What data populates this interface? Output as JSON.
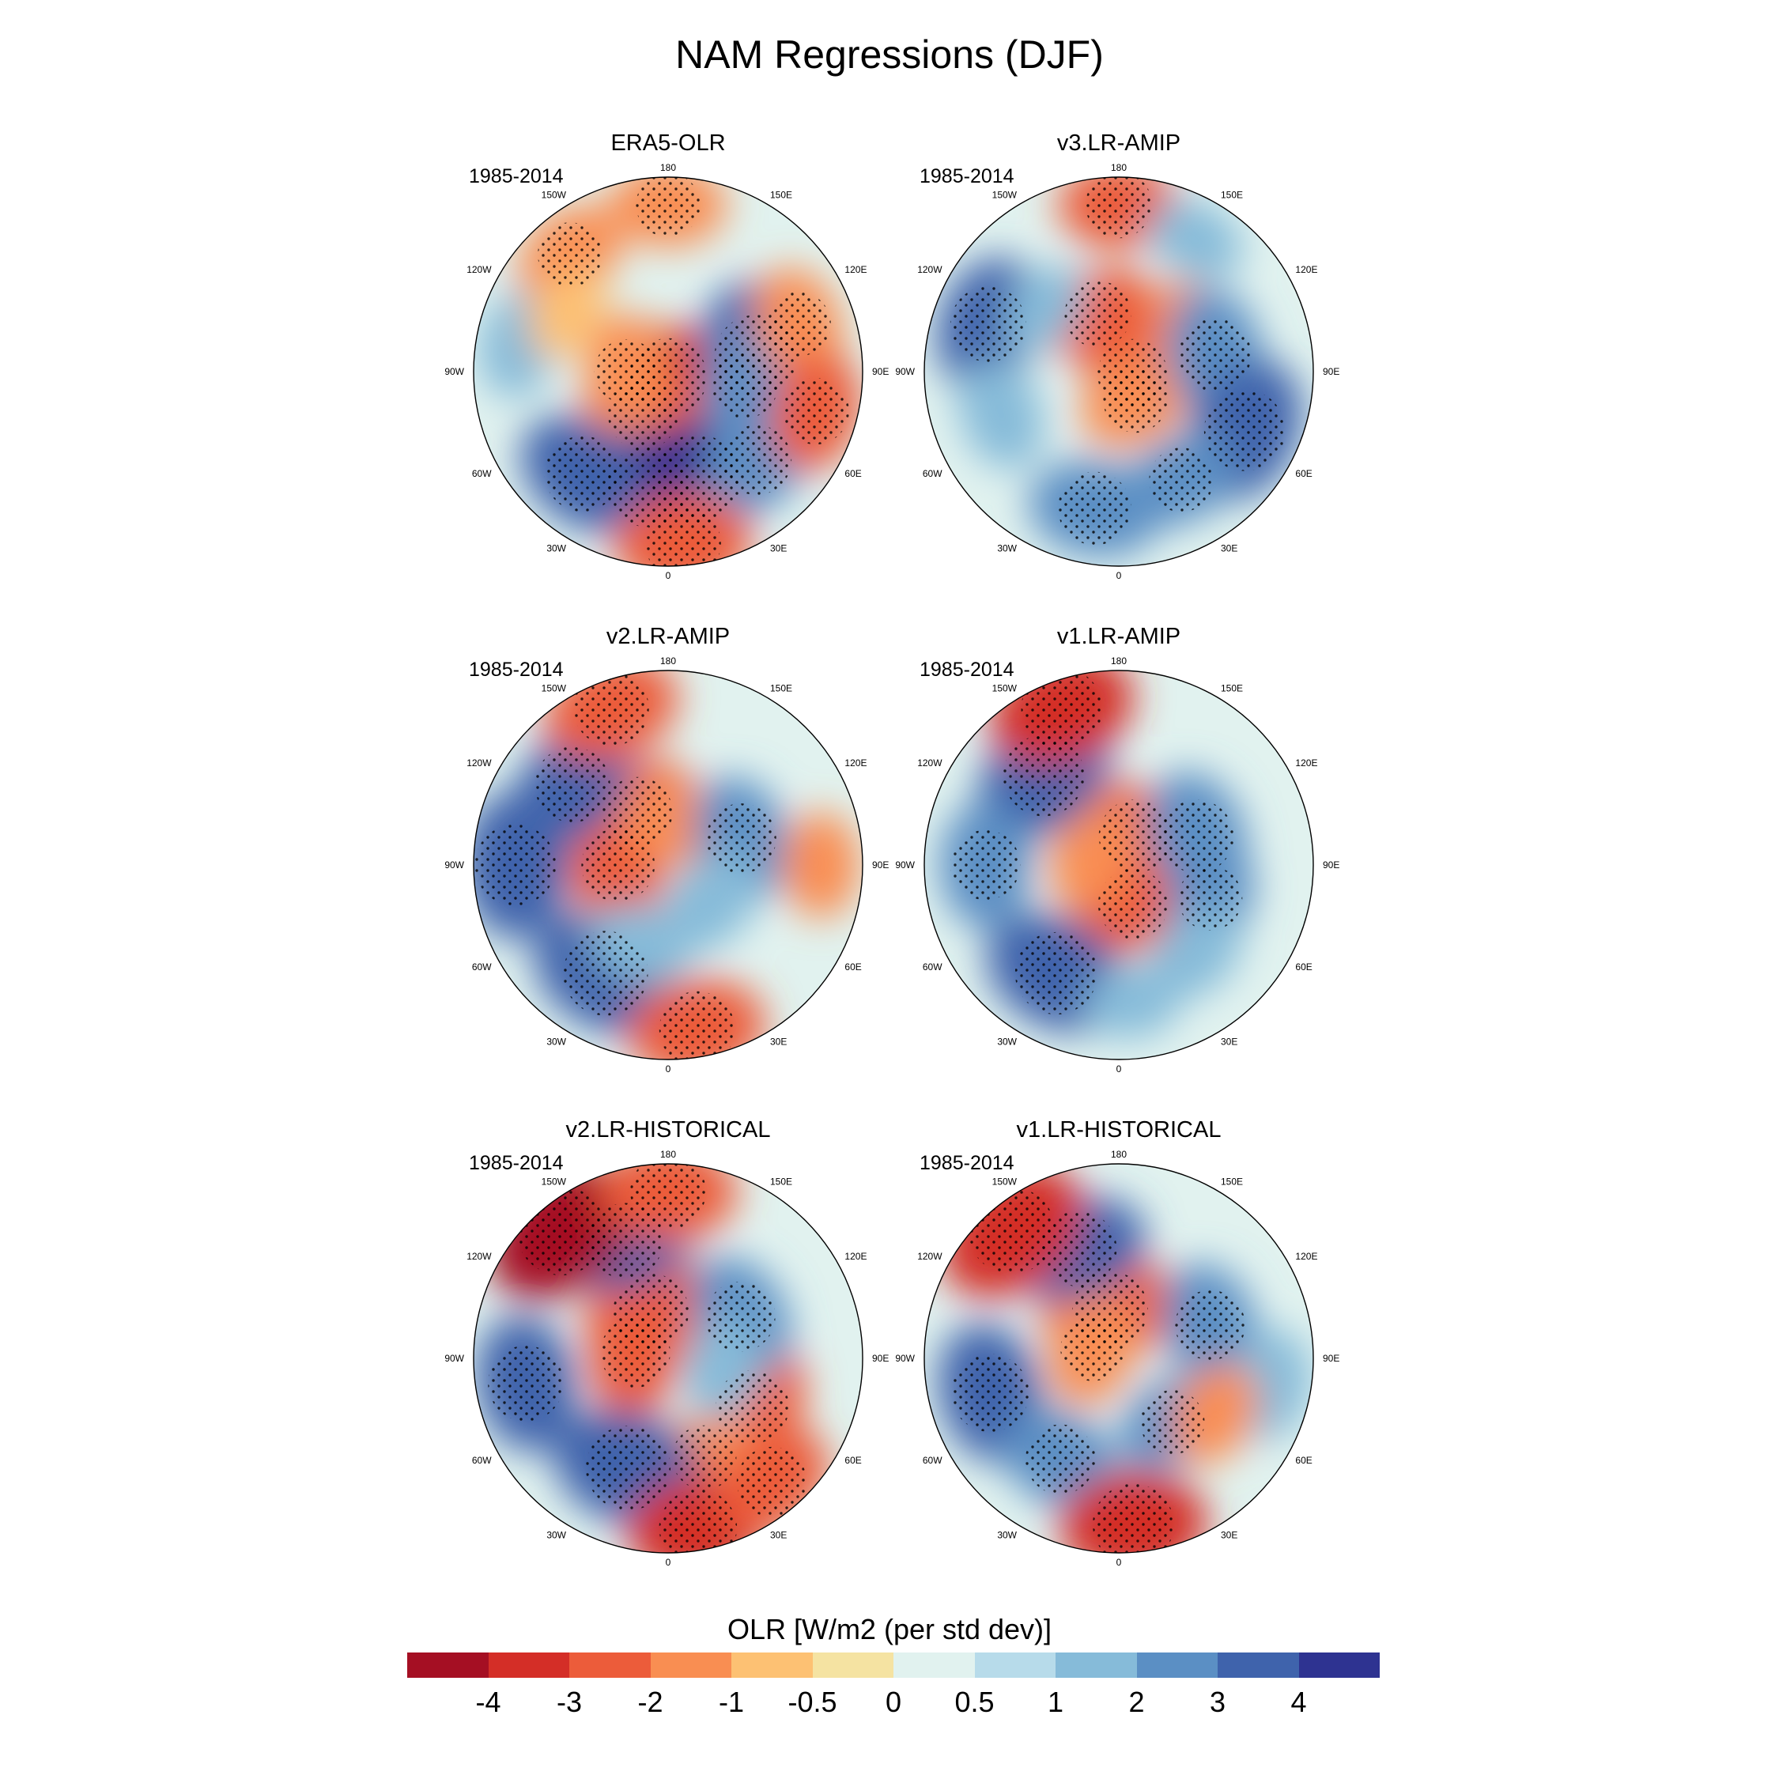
{
  "title": "NAM Regressions (DJF)",
  "period": "1985-2014",
  "lon_labels": [
    "180",
    "150E",
    "120E",
    "90E",
    "60E",
    "30E",
    "0",
    "30W",
    "60W",
    "90W",
    "120W",
    "150W"
  ],
  "colorbar": {
    "title": "OLR [W/m2 (per std dev)]",
    "levels": [
      "-4",
      "-3",
      "-2",
      "-1",
      "-0.5",
      "0",
      "0.5",
      "1",
      "2",
      "3",
      "4"
    ],
    "colors": [
      "#a50f23",
      "#d42e27",
      "#ec5c3a",
      "#f98e52",
      "#fdc173",
      "#f5e3a2",
      "#e1f2ef",
      "#b7dbea",
      "#86bbd9",
      "#5b8fc4",
      "#3f63ac",
      "#2e3391"
    ]
  },
  "chart_data": [
    {
      "type": "contour-map",
      "title": "ERA5-OLR",
      "period": "1985-2014",
      "projection": "north polar stereographic",
      "features": [
        {
          "lon": 0,
          "lat": 88,
          "value": -3.2
        },
        {
          "lon": 330,
          "lat": 72,
          "value": -2.5
        },
        {
          "lon": 270,
          "lat": 75,
          "value": -2.0
        },
        {
          "lon": 350,
          "lat": 48,
          "value": 3.5
        },
        {
          "lon": 15,
          "lat": 50,
          "value": 4.2
        },
        {
          "lon": 320,
          "lat": 42,
          "value": 3.0
        },
        {
          "lon": 45,
          "lat": 45,
          "value": 2.5
        },
        {
          "lon": 100,
          "lat": 58,
          "value": 3.6
        },
        {
          "lon": 80,
          "lat": 62,
          "value": 2.2
        },
        {
          "lon": 110,
          "lat": 40,
          "value": -2.0
        },
        {
          "lon": 75,
          "lat": 35,
          "value": -2.2
        },
        {
          "lon": 180,
          "lat": 30,
          "value": -2.0
        },
        {
          "lon": 220,
          "lat": 35,
          "value": -2.0
        },
        {
          "lon": 5,
          "lat": 28,
          "value": -3.0
        },
        {
          "lon": 260,
          "lat": 35,
          "value": 1.5
        },
        {
          "lon": 240,
          "lat": 48,
          "value": -1.0
        }
      ]
    },
    {
      "type": "contour-map",
      "title": "v3.LR-AMIP",
      "period": "1985-2014",
      "projection": "north polar stereographic",
      "features": [
        {
          "lon": 80,
          "lat": 85,
          "value": -2.5
        },
        {
          "lon": 30,
          "lat": 78,
          "value": -2.0
        },
        {
          "lon": 200,
          "lat": 68,
          "value": -2.2
        },
        {
          "lon": 120,
          "lat": 60,
          "value": -1.5
        },
        {
          "lon": 100,
          "lat": 55,
          "value": 2.8
        },
        {
          "lon": 65,
          "lat": 40,
          "value": 3.5
        },
        {
          "lon": 30,
          "lat": 45,
          "value": 2.0
        },
        {
          "lon": 350,
          "lat": 40,
          "value": 2.8
        },
        {
          "lon": 250,
          "lat": 40,
          "value": 3.0
        },
        {
          "lon": 290,
          "lat": 45,
          "value": 1.8
        },
        {
          "lon": 180,
          "lat": 30,
          "value": -2.2
        },
        {
          "lon": 150,
          "lat": 35,
          "value": 1.2
        },
        {
          "lon": 230,
          "lat": 55,
          "value": 1.0
        }
      ]
    },
    {
      "type": "contour-map",
      "title": "v2.LR-AMIP",
      "period": "1985-2014",
      "projection": "north polar stereographic",
      "features": [
        {
          "lon": 270,
          "lat": 72,
          "value": -2.8
        },
        {
          "lon": 210,
          "lat": 68,
          "value": -2.5
        },
        {
          "lon": 170,
          "lat": 75,
          "value": -1.8
        },
        {
          "lon": 330,
          "lat": 45,
          "value": 3.8
        },
        {
          "lon": 270,
          "lat": 35,
          "value": 3.5
        },
        {
          "lon": 230,
          "lat": 45,
          "value": 3.0
        },
        {
          "lon": 110,
          "lat": 62,
          "value": 2.5
        },
        {
          "lon": 50,
          "lat": 70,
          "value": 1.8
        },
        {
          "lon": 10,
          "lat": 30,
          "value": -3.0
        },
        {
          "lon": 200,
          "lat": 30,
          "value": -3.0
        },
        {
          "lon": 90,
          "lat": 35,
          "value": -1.5
        },
        {
          "lon": 340,
          "lat": 60,
          "value": 1.5
        }
      ]
    },
    {
      "type": "contour-map",
      "title": "v1.LR-AMIP",
      "period": "1985-2014",
      "projection": "north polar stereographic",
      "features": [
        {
          "lon": 150,
          "lat": 78,
          "value": -2.8
        },
        {
          "lon": 20,
          "lat": 75,
          "value": -2.5
        },
        {
          "lon": 250,
          "lat": 80,
          "value": -1.8
        },
        {
          "lon": 330,
          "lat": 45,
          "value": 3.6
        },
        {
          "lon": 220,
          "lat": 48,
          "value": 3.5
        },
        {
          "lon": 270,
          "lat": 42,
          "value": 2.5
        },
        {
          "lon": 110,
          "lat": 60,
          "value": 2.8
        },
        {
          "lon": 70,
          "lat": 55,
          "value": 2.0
        },
        {
          "lon": 200,
          "lat": 30,
          "value": -3.5
        },
        {
          "lon": 5,
          "lat": 40,
          "value": 1.0
        },
        {
          "lon": 40,
          "lat": 48,
          "value": 1.5
        }
      ]
    },
    {
      "type": "contour-map",
      "title": "v2.LR-HISTORICAL",
      "period": "1985-2014",
      "projection": "north polar stereographic",
      "features": [
        {
          "lon": 200,
          "lat": 72,
          "value": -3.0
        },
        {
          "lon": 260,
          "lat": 78,
          "value": -2.5
        },
        {
          "lon": 60,
          "lat": 55,
          "value": -2.8
        },
        {
          "lon": 20,
          "lat": 52,
          "value": -2.0
        },
        {
          "lon": 200,
          "lat": 45,
          "value": 3.0
        },
        {
          "lon": 340,
          "lat": 48,
          "value": 3.8
        },
        {
          "lon": 280,
          "lat": 38,
          "value": 3.0
        },
        {
          "lon": 120,
          "lat": 60,
          "value": 2.5
        },
        {
          "lon": 80,
          "lat": 70,
          "value": 1.5
        },
        {
          "lon": 220,
          "lat": 30,
          "value": -4.2
        },
        {
          "lon": 180,
          "lat": 30,
          "value": -3.0
        },
        {
          "lon": 10,
          "lat": 28,
          "value": -3.2
        },
        {
          "lon": 40,
          "lat": 32,
          "value": -2.5
        }
      ]
    },
    {
      "type": "contour-map",
      "title": "v1.LR-HISTORICAL",
      "period": "1985-2014",
      "projection": "north polar stereographic",
      "features": [
        {
          "lon": 190,
          "lat": 72,
          "value": -3.0
        },
        {
          "lon": 250,
          "lat": 80,
          "value": -2.0
        },
        {
          "lon": 200,
          "lat": 48,
          "value": 3.0
        },
        {
          "lon": 285,
          "lat": 42,
          "value": 3.2
        },
        {
          "lon": 330,
          "lat": 48,
          "value": 2.5
        },
        {
          "lon": 110,
          "lat": 55,
          "value": 2.5
        },
        {
          "lon": 40,
          "lat": 60,
          "value": 2.0
        },
        {
          "lon": 80,
          "lat": 35,
          "value": 1.8
        },
        {
          "lon": 60,
          "lat": 50,
          "value": -1.5
        },
        {
          "lon": 220,
          "lat": 30,
          "value": -4.0
        },
        {
          "lon": 5,
          "lat": 30,
          "value": -3.5
        }
      ]
    }
  ]
}
